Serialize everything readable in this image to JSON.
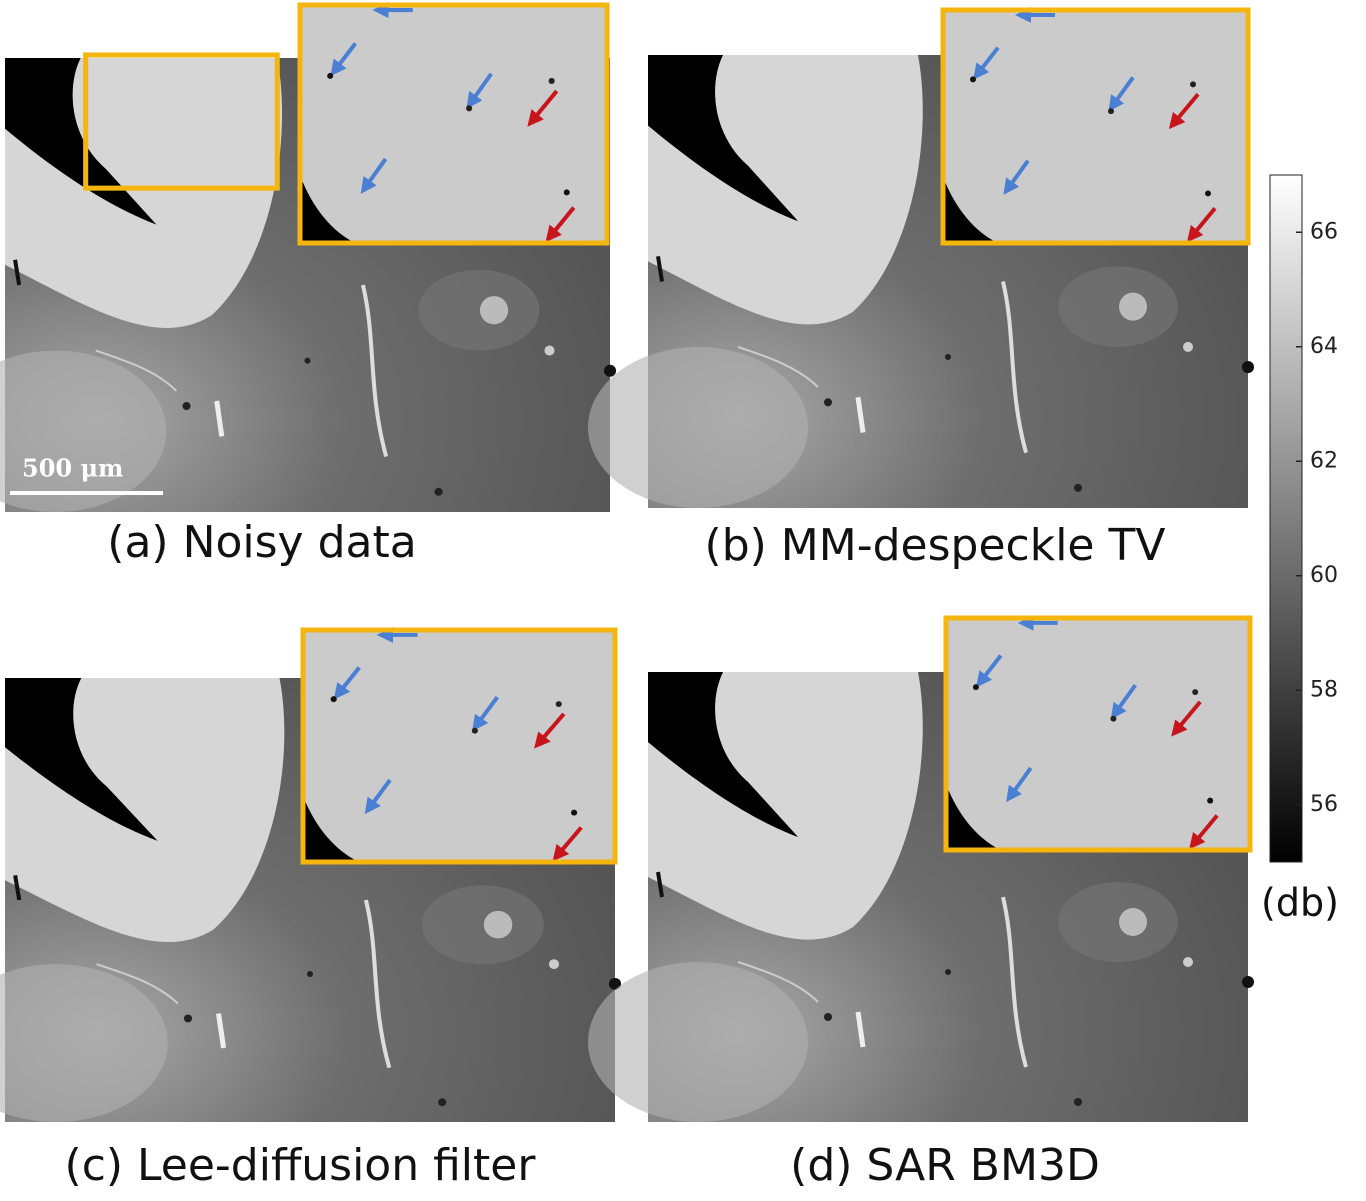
{
  "panels": [
    {
      "caption": "(a) Noisy data",
      "scale_bar": "500 μm"
    },
    {
      "caption": "(b) MM-despeckle TV"
    },
    {
      "caption": "(c) Lee-diffusion filter"
    },
    {
      "caption": "(d) SAR BM3D"
    }
  ],
  "colorbar": {
    "lim": [
      55,
      67
    ],
    "ticks": [
      56,
      58,
      60,
      62,
      64,
      66
    ],
    "label": "(db)"
  }
}
